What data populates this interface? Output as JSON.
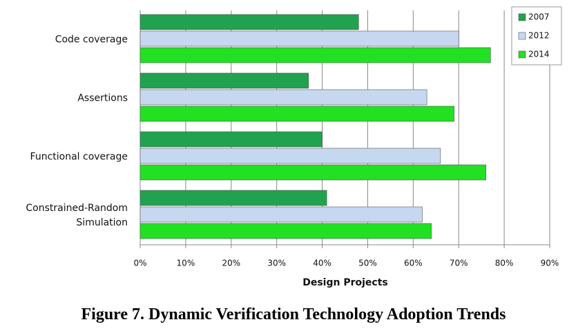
{
  "chart_data": {
    "type": "hbar",
    "caption": "Figure 7. Dynamic Verification Technology Adoption Trends",
    "x_label": "Design Projects",
    "categories": [
      "Code coverage",
      "Assertions",
      "Functional coverage",
      "Constrained-Random\nSimulation"
    ],
    "series": [
      {
        "name": "2007",
        "color": "#21a24f",
        "values": [
          48,
          37,
          40,
          41
        ]
      },
      {
        "name": "2012",
        "color": "#c6d8f0",
        "values": [
          70,
          63,
          66,
          62
        ]
      },
      {
        "name": "2014",
        "color": "#22e022",
        "values": [
          77,
          69,
          76,
          64
        ]
      }
    ],
    "xlim": [
      0,
      90
    ],
    "xticks": [
      {
        "value": 0,
        "label": "0%"
      },
      {
        "value": 10,
        "label": "10%"
      },
      {
        "value": 20,
        "label": "20%"
      },
      {
        "value": 30,
        "label": "30%"
      },
      {
        "value": 40,
        "label": "40%"
      },
      {
        "value": 50,
        "label": "50%"
      },
      {
        "value": 60,
        "label": "60%"
      },
      {
        "value": 70,
        "label": "70%"
      },
      {
        "value": 80,
        "label": "80%"
      },
      {
        "value": 90,
        "label": "90%"
      }
    ],
    "grid": true,
    "legend": "top-right"
  }
}
